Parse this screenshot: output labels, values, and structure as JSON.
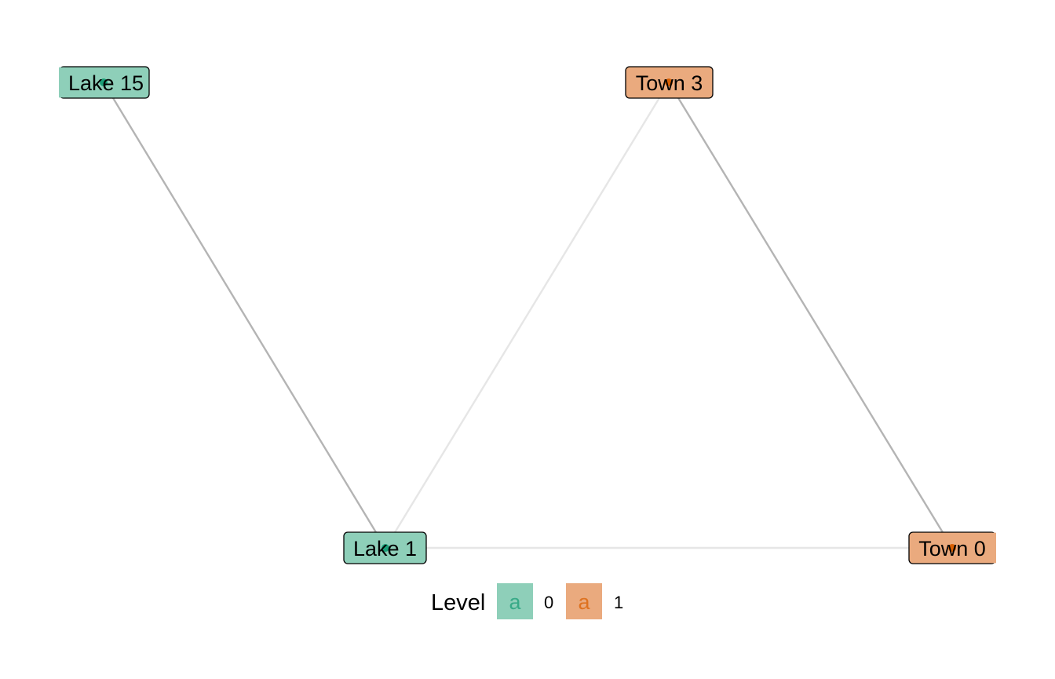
{
  "diagram": {
    "nodes": [
      {
        "id": "lake15",
        "label": "Lake 15",
        "level": "0"
      },
      {
        "id": "town3",
        "label": "Town 3",
        "level": "1"
      },
      {
        "id": "lake1",
        "label": "Lake 1",
        "level": "0"
      },
      {
        "id": "town0",
        "label": "Town 0",
        "level": "1"
      }
    ],
    "edges": [
      {
        "from": "lake15",
        "to": "lake1",
        "tone": "dark"
      },
      {
        "from": "town3",
        "to": "lake1",
        "tone": "light"
      },
      {
        "from": "town3",
        "to": "town0",
        "tone": "dark"
      },
      {
        "from": "lake1",
        "to": "town0",
        "tone": "light"
      }
    ],
    "colors": {
      "level_0_fill": "#8ecfb9",
      "level_1_fill": "#eaaa7e",
      "level_0_point": "#1b9e77",
      "level_1_point": "#d95f02",
      "edge_dark": "#b4b4b4",
      "edge_light": "#e6e6e6"
    }
  },
  "legend": {
    "title": "Level",
    "key_glyph": "a",
    "items": [
      {
        "label": "0",
        "level": "0"
      },
      {
        "label": "1",
        "level": "1"
      }
    ]
  }
}
